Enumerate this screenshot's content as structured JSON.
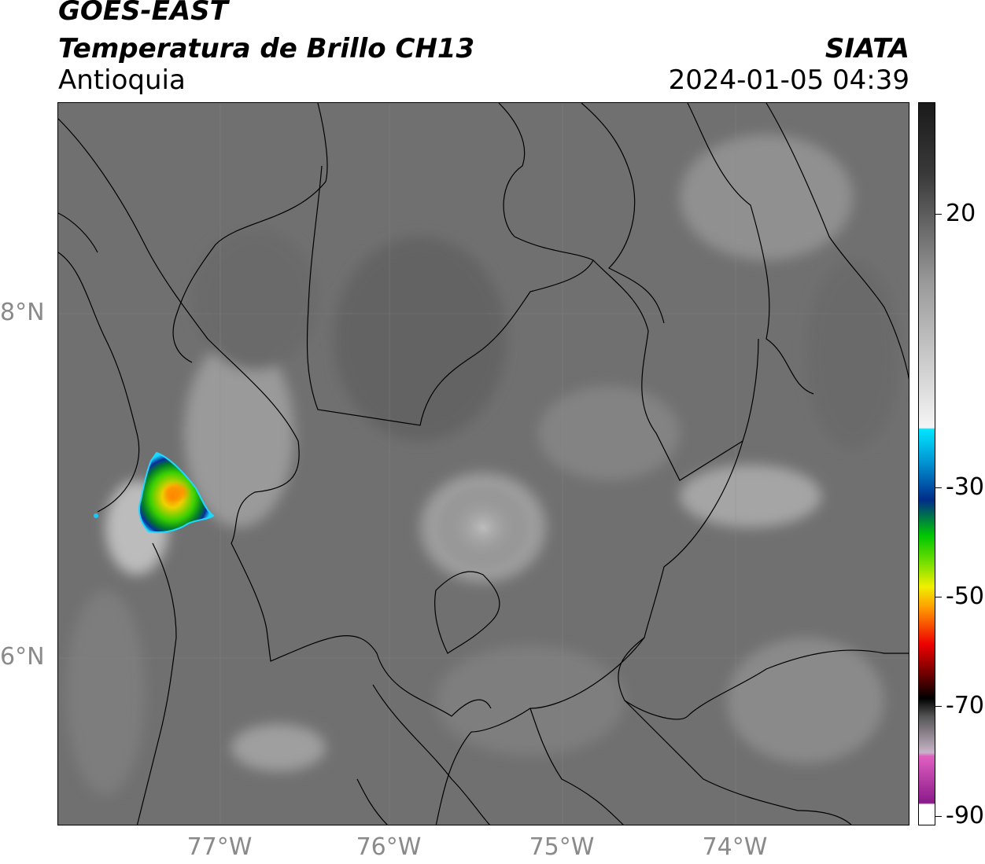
{
  "header": {
    "satellite": "GOES-EAST",
    "product": "Temperatura de Brillo CH13",
    "region": "Antioquia",
    "agency": "SIATA",
    "datetime": "2024-01-05 04:39"
  },
  "axes": {
    "latitude_labels": [
      "8°N",
      "6°N"
    ],
    "longitude_labels": [
      "77°W",
      "76°W",
      "75°W",
      "74°W"
    ]
  },
  "colorbar": {
    "tick_labels": [
      "20",
      "-30",
      "-50",
      "-70",
      "-90"
    ],
    "colors": {
      "warm": "#1a1a1a",
      "mid_gray": "#9a9a9a",
      "white": "#f5f5f5",
      "cyan": "#00e5ff",
      "blue": "#002c8a",
      "green": "#00c800",
      "yellow": "#f0f000",
      "orange": "#ff9900",
      "red": "#ee0000",
      "dark_red": "#550000",
      "black": "#000000",
      "pink": "#e060c0",
      "purple": "#8a1a8a"
    }
  },
  "legend": {
    "map_background": "#6f6f6f",
    "boundary_color": "#000000",
    "storm_cell": "convective cloud with cold tops (≈ -30 to -60)"
  }
}
